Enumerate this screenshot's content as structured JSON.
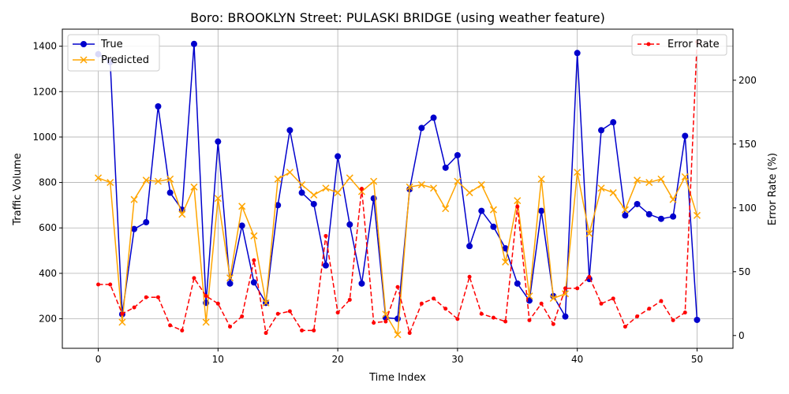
{
  "chart_data": {
    "type": "line",
    "title": "Boro: BROOKLYN Street: PULASKI BRIDGE (using weather feature)",
    "xlabel": "Time Index",
    "ylabel": "Traffic Volume",
    "y2label": "Error Rate (%)",
    "xlim": [
      -3,
      53
    ],
    "ylim": [
      70,
      1475
    ],
    "y2lim": [
      -10,
      240
    ],
    "xticks": [
      0,
      10,
      20,
      30,
      40,
      50
    ],
    "yticks": [
      200,
      400,
      600,
      800,
      1000,
      1200,
      1400
    ],
    "y2ticks": [
      0,
      50,
      100,
      150,
      200
    ],
    "grid": true,
    "x": [
      0,
      1,
      2,
      3,
      4,
      5,
      6,
      7,
      8,
      9,
      10,
      11,
      12,
      13,
      14,
      15,
      16,
      17,
      18,
      19,
      20,
      21,
      22,
      23,
      24,
      25,
      26,
      27,
      28,
      29,
      30,
      31,
      32,
      33,
      34,
      35,
      36,
      37,
      38,
      39,
      40,
      41,
      42,
      43,
      44,
      45,
      46,
      47,
      48,
      49,
      50
    ],
    "series": [
      {
        "name": "True",
        "axis": "left",
        "color": "#0000cc",
        "marker": "circle",
        "values": [
          1365,
          1330,
          220,
          595,
          625,
          1135,
          755,
          680,
          1410,
          270,
          980,
          355,
          610,
          360,
          270,
          700,
          1030,
          755,
          705,
          435,
          915,
          615,
          355,
          730,
          205,
          200,
          770,
          1040,
          1085,
          865,
          920,
          520,
          675,
          605,
          510,
          355,
          280,
          675,
          300,
          210,
          1370,
          375,
          1030,
          1065,
          655,
          705,
          660,
          640,
          650,
          1005,
          195
        ]
      },
      {
        "name": "Predicted",
        "axis": "left",
        "color": "#ffa500",
        "marker": "x",
        "values": [
          820,
          800,
          185,
          725,
          810,
          805,
          815,
          660,
          780,
          185,
          730,
          380,
          695,
          565,
          270,
          815,
          845,
          790,
          745,
          775,
          755,
          820,
          760,
          805,
          220,
          130,
          780,
          790,
          775,
          685,
          805,
          755,
          790,
          680,
          450,
          720,
          300,
          815,
          290,
          310,
          845,
          575,
          775,
          755,
          680,
          810,
          800,
          815,
          725,
          825,
          655
        ]
      },
      {
        "name": "Error Rate",
        "axis": "right",
        "color": "#ff0000",
        "marker": "dot",
        "dashed": true,
        "values": [
          40,
          40,
          17,
          22,
          30,
          30,
          8,
          4,
          45,
          31,
          25,
          7,
          15,
          59,
          2,
          17,
          19,
          4,
          4,
          78,
          18,
          28,
          115,
          10,
          11,
          38,
          2,
          25,
          29,
          21,
          13,
          46,
          17,
          14,
          11,
          101,
          12,
          25,
          9,
          37,
          37,
          46,
          25,
          29,
          7,
          15,
          21,
          27,
          12,
          18,
          230
        ]
      }
    ]
  }
}
